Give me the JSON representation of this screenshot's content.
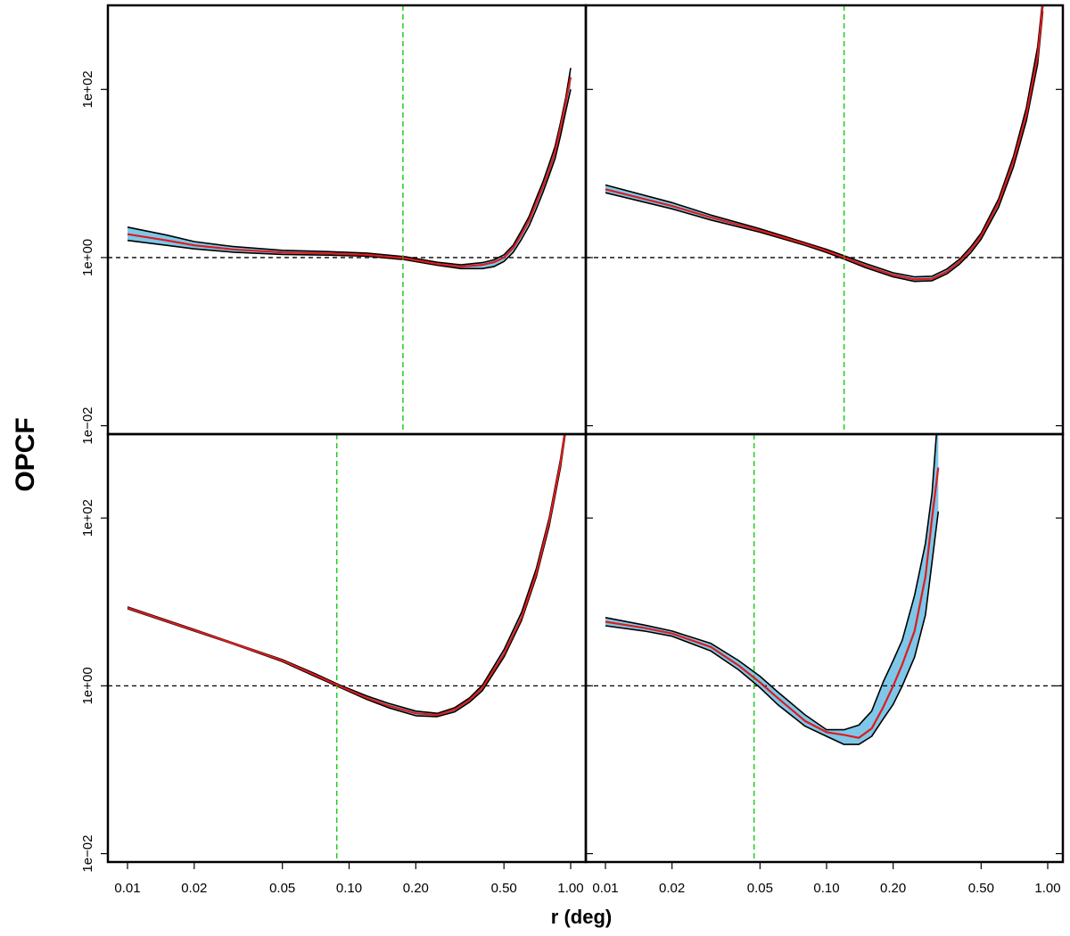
{
  "figure": {
    "ylabel": "OPCF",
    "xlabel": "r (deg)"
  },
  "axes": {
    "x": {
      "scale": "log",
      "range": [
        0.01,
        1.0
      ],
      "ticks": [
        0.01,
        0.02,
        0.05,
        0.1,
        0.2,
        0.5,
        1.0
      ],
      "tick_labels": [
        "0.01",
        "0.02",
        "0.05",
        "0.10",
        "0.20",
        "0.50",
        "1.00"
      ]
    },
    "y": {
      "scale": "log",
      "range_log10": [
        -2.1,
        3.0
      ],
      "ticks": [
        0.01,
        1,
        100
      ],
      "tick_labels": [
        "1e−02",
        "1e+00",
        "1e+02"
      ]
    }
  },
  "colors": {
    "median": "#dd1c1c",
    "envelope_fill": "#7ec7e9",
    "envelope_edge": "#000000",
    "vline": "#22cc22",
    "hline": "#000000"
  },
  "chart_data": [
    {
      "type": "line",
      "panel": "top-left",
      "hline_y": 1.0,
      "vline_x": 0.175,
      "series": [
        {
          "role": "median",
          "x": [
            0.01,
            0.015,
            0.02,
            0.03,
            0.05,
            0.08,
            0.12,
            0.18,
            0.25,
            0.32,
            0.4,
            0.45,
            0.5,
            0.55,
            0.6,
            0.65,
            0.7,
            0.75,
            0.8,
            0.85,
            0.9,
            0.95,
            1.0
          ],
          "y": [
            1.9,
            1.6,
            1.4,
            1.25,
            1.15,
            1.12,
            1.08,
            0.98,
            0.84,
            0.78,
            0.82,
            0.88,
            1.0,
            1.3,
            1.9,
            2.8,
            4.5,
            7.0,
            11,
            18,
            35,
            70,
            140
          ]
        },
        {
          "role": "upper",
          "x": [
            0.01,
            0.015,
            0.02,
            0.03,
            0.05,
            0.08,
            0.12,
            0.18,
            0.25,
            0.32,
            0.4,
            0.45,
            0.5,
            0.55,
            0.6,
            0.65,
            0.7,
            0.75,
            0.8,
            0.85,
            0.9,
            0.95,
            1.0
          ],
          "y": [
            2.3,
            1.85,
            1.55,
            1.35,
            1.22,
            1.18,
            1.13,
            1.02,
            0.88,
            0.82,
            0.87,
            0.94,
            1.08,
            1.4,
            2.1,
            3.1,
            5.1,
            8.0,
            13,
            21,
            40,
            80,
            180
          ]
        },
        {
          "role": "lower",
          "x": [
            0.01,
            0.015,
            0.02,
            0.03,
            0.05,
            0.08,
            0.12,
            0.18,
            0.25,
            0.32,
            0.4,
            0.45,
            0.5,
            0.55,
            0.6,
            0.65,
            0.7,
            0.75,
            0.8,
            0.85,
            0.9,
            0.95,
            1.0
          ],
          "y": [
            1.6,
            1.4,
            1.27,
            1.16,
            1.09,
            1.07,
            1.04,
            0.94,
            0.81,
            0.74,
            0.74,
            0.78,
            0.9,
            1.15,
            1.65,
            2.4,
            3.8,
            6.0,
            9.5,
            15,
            28,
            55,
            100
          ]
        }
      ]
    },
    {
      "type": "line",
      "panel": "top-right",
      "hline_y": 1.0,
      "vline_x": 0.12,
      "series": [
        {
          "role": "median",
          "x": [
            0.01,
            0.02,
            0.03,
            0.05,
            0.08,
            0.1,
            0.12,
            0.15,
            0.2,
            0.25,
            0.3,
            0.35,
            0.4,
            0.45,
            0.5,
            0.6,
            0.7,
            0.8,
            0.9,
            0.95
          ],
          "y": [
            6.5,
            4.1,
            3.0,
            2.1,
            1.45,
            1.2,
            1.0,
            0.8,
            0.62,
            0.55,
            0.56,
            0.68,
            0.9,
            1.25,
            1.8,
            4.5,
            14,
            50,
            250,
            1000
          ]
        },
        {
          "role": "upper",
          "x": [
            0.01,
            0.02,
            0.03,
            0.05,
            0.08,
            0.1,
            0.12,
            0.15,
            0.2,
            0.25,
            0.3,
            0.35,
            0.4,
            0.45,
            0.5,
            0.6,
            0.7,
            0.8,
            0.9,
            0.95
          ],
          "y": [
            7.3,
            4.5,
            3.2,
            2.2,
            1.5,
            1.25,
            1.05,
            0.85,
            0.66,
            0.59,
            0.6,
            0.73,
            0.96,
            1.35,
            1.95,
            5.0,
            16,
            60,
            320,
            1200
          ]
        },
        {
          "role": "lower",
          "x": [
            0.01,
            0.02,
            0.03,
            0.05,
            0.08,
            0.1,
            0.12,
            0.15,
            0.2,
            0.25,
            0.3,
            0.35,
            0.4,
            0.45,
            0.5,
            0.6,
            0.7,
            0.8,
            0.9,
            0.95
          ],
          "y": [
            5.9,
            3.8,
            2.8,
            2.0,
            1.4,
            1.15,
            0.96,
            0.76,
            0.59,
            0.52,
            0.53,
            0.64,
            0.84,
            1.15,
            1.65,
            4.0,
            12,
            42,
            200,
            850
          ]
        }
      ]
    },
    {
      "type": "line",
      "panel": "bottom-left",
      "hline_y": 1.0,
      "vline_x": 0.088,
      "series": [
        {
          "role": "median",
          "x": [
            0.01,
            0.02,
            0.03,
            0.05,
            0.07,
            0.09,
            0.12,
            0.15,
            0.2,
            0.25,
            0.3,
            0.35,
            0.4,
            0.5,
            0.6,
            0.7,
            0.8,
            0.9,
            0.95
          ],
          "y": [
            8.5,
            4.6,
            3.2,
            2.0,
            1.35,
            1.0,
            0.72,
            0.58,
            0.47,
            0.45,
            0.52,
            0.68,
            0.95,
            2.4,
            6.5,
            22,
            90,
            450,
            1200
          ]
        },
        {
          "role": "upper",
          "x": [
            0.01,
            0.02,
            0.03,
            0.05,
            0.07,
            0.09,
            0.12,
            0.15,
            0.2,
            0.25,
            0.3,
            0.35,
            0.4,
            0.5,
            0.6,
            0.7,
            0.8,
            0.9,
            0.95
          ],
          "y": [
            8.7,
            4.7,
            3.25,
            2.05,
            1.4,
            1.03,
            0.76,
            0.62,
            0.5,
            0.47,
            0.55,
            0.72,
            1.02,
            2.7,
            7.5,
            25,
            100,
            500,
            1300
          ]
        },
        {
          "role": "lower",
          "x": [
            0.01,
            0.02,
            0.03,
            0.05,
            0.07,
            0.09,
            0.12,
            0.15,
            0.2,
            0.25,
            0.3,
            0.35,
            0.4,
            0.5,
            0.6,
            0.7,
            0.8,
            0.9,
            0.95
          ],
          "y": [
            8.3,
            4.5,
            3.15,
            1.95,
            1.3,
            0.97,
            0.69,
            0.55,
            0.44,
            0.43,
            0.49,
            0.64,
            0.88,
            2.2,
            6.0,
            20,
            80,
            400,
            1100
          ]
        }
      ]
    },
    {
      "type": "line",
      "panel": "bottom-right",
      "hline_y": 1.0,
      "vline_x": 0.047,
      "series": [
        {
          "role": "median",
          "x": [
            0.01,
            0.015,
            0.02,
            0.03,
            0.04,
            0.05,
            0.06,
            0.08,
            0.1,
            0.12,
            0.14,
            0.16,
            0.18,
            0.2,
            0.22,
            0.25,
            0.28,
            0.3,
            0.32
          ],
          "y": [
            5.8,
            4.9,
            4.2,
            2.9,
            1.75,
            1.1,
            0.72,
            0.38,
            0.28,
            0.26,
            0.24,
            0.31,
            0.55,
            1.0,
            1.8,
            4.5,
            20,
            100,
            400
          ]
        },
        {
          "role": "upper",
          "x": [
            0.01,
            0.015,
            0.02,
            0.03,
            0.04,
            0.05,
            0.06,
            0.08,
            0.1,
            0.12,
            0.14,
            0.16,
            0.18,
            0.2,
            0.22,
            0.25,
            0.28,
            0.3,
            0.32
          ],
          "y": [
            6.5,
            5.3,
            4.5,
            3.2,
            2.0,
            1.3,
            0.85,
            0.45,
            0.3,
            0.3,
            0.34,
            0.5,
            1.1,
            2.0,
            3.5,
            12,
            50,
            200,
            2000
          ]
        },
        {
          "role": "lower",
          "x": [
            0.01,
            0.015,
            0.02,
            0.03,
            0.04,
            0.05,
            0.06,
            0.08,
            0.1,
            0.12,
            0.14,
            0.16,
            0.18,
            0.2,
            0.22,
            0.25,
            0.28,
            0.3,
            0.32
          ],
          "y": [
            5.2,
            4.5,
            3.9,
            2.6,
            1.55,
            0.95,
            0.6,
            0.33,
            0.25,
            0.2,
            0.2,
            0.25,
            0.4,
            0.6,
            1.0,
            2.2,
            7,
            30,
            120
          ]
        }
      ]
    }
  ]
}
